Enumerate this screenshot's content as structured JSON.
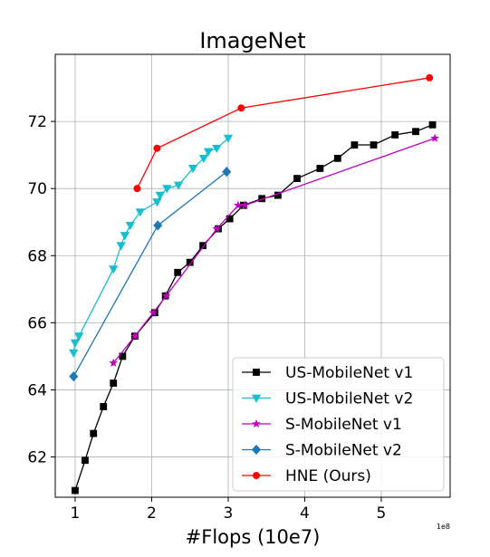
{
  "chart_data": {
    "type": "line",
    "title": "ImageNet",
    "xlabel": "#Flops (10e7)",
    "ylabel": "",
    "x_offset_text": "1e8",
    "xlim": [
      0.74,
      5.9
    ],
    "ylim": [
      60.8,
      74.0
    ],
    "xticks": [
      1,
      2,
      3,
      4,
      5
    ],
    "xtick_labels": [
      "1",
      "2",
      "3",
      "4",
      "5"
    ],
    "yticks": [
      62,
      64,
      66,
      68,
      70,
      72
    ],
    "ytick_labels": [
      "62",
      "64",
      "66",
      "68",
      "70",
      "72"
    ],
    "grid": true,
    "legend_position": "lower-right",
    "series": [
      {
        "name": "US-MobileNet v1",
        "color": "#000000",
        "marker": "square",
        "x": [
          1.0,
          1.13,
          1.24,
          1.37,
          1.5,
          1.62,
          1.78,
          2.04,
          2.18,
          2.34,
          2.5,
          2.67,
          2.87,
          3.02,
          3.2,
          3.44,
          3.65,
          3.9,
          4.2,
          4.43,
          4.65,
          4.9,
          5.18,
          5.45,
          5.67
        ],
        "y": [
          61.0,
          61.9,
          62.7,
          63.5,
          64.2,
          65.0,
          65.6,
          66.3,
          66.8,
          67.5,
          67.8,
          68.3,
          68.8,
          69.1,
          69.5,
          69.7,
          69.8,
          70.3,
          70.6,
          70.9,
          71.3,
          71.3,
          71.6,
          71.7,
          71.9
        ]
      },
      {
        "name": "US-MobileNet v2",
        "color": "#17becf",
        "marker": "triangle-down",
        "x": [
          0.98,
          1.0,
          1.05,
          1.5,
          1.6,
          1.65,
          1.72,
          1.85,
          2.07,
          2.11,
          2.2,
          2.35,
          2.54,
          2.68,
          2.74,
          2.85,
          3.0
        ],
        "y": [
          65.1,
          65.4,
          65.6,
          67.6,
          68.3,
          68.6,
          68.9,
          69.3,
          69.6,
          69.8,
          70.0,
          70.1,
          70.6,
          70.9,
          71.1,
          71.2,
          71.5
        ]
      },
      {
        "name": "S-MobileNet v1",
        "color": "#bf00bf",
        "marker": "star",
        "x": [
          1.5,
          1.78,
          2.02,
          2.19,
          2.85,
          3.13,
          3.22,
          5.7
        ],
        "y": [
          64.8,
          65.6,
          66.3,
          66.8,
          68.8,
          69.5,
          69.5,
          71.5
        ]
      },
      {
        "name": "S-MobileNet v2",
        "color": "#1f77b4",
        "marker": "diamond",
        "x": [
          0.98,
          2.08,
          2.98
        ],
        "y": [
          64.4,
          68.9,
          70.5
        ]
      },
      {
        "name": "HNE (Ours)",
        "color": "#ff0000",
        "marker": "circle",
        "x": [
          1.81,
          2.07,
          3.17,
          5.63
        ],
        "y": [
          70.0,
          71.2,
          72.4,
          73.3
        ]
      }
    ]
  }
}
